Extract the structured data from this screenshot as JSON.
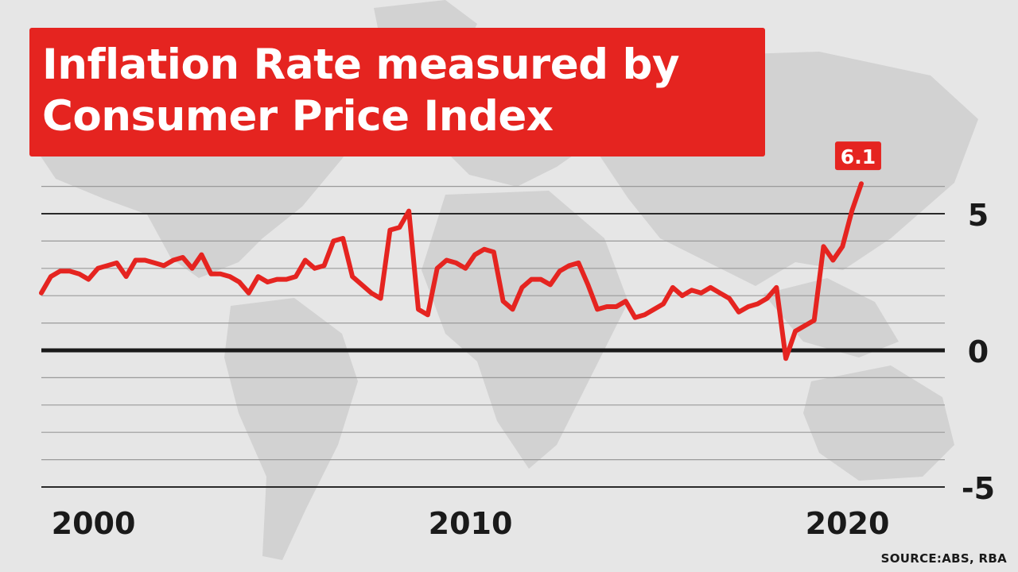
{
  "title": {
    "line1": "Inflation Rate measured by",
    "line2": "Consumer Price Index"
  },
  "source": "SOURCE:ABS, RBA",
  "colors": {
    "background": "#e6e6e6",
    "map": "#d2d2d2",
    "accent": "#e52420",
    "axis": "#1a1a1a"
  },
  "chart_data": {
    "type": "line",
    "title": "Inflation Rate measured by Consumer Price Index",
    "xlabel": "",
    "ylabel": "",
    "xlim": [
      1999.25,
      2022.5
    ],
    "ylim": [
      -5,
      6.3
    ],
    "x_ticks": [
      2000,
      2010,
      2020
    ],
    "y_ticks": [
      5,
      0,
      -5
    ],
    "grid": true,
    "last_label": "6.1",
    "series": [
      {
        "values": [
          [
            1999.25,
            2.1
          ],
          [
            1999.5,
            2.7
          ],
          [
            1999.75,
            2.9
          ],
          [
            2000.0,
            2.9
          ],
          [
            2000.25,
            2.8
          ],
          [
            2000.5,
            2.6
          ],
          [
            2000.75,
            3.0
          ],
          [
            2001.0,
            3.1
          ],
          [
            2001.25,
            3.2
          ],
          [
            2001.5,
            2.7
          ],
          [
            2001.75,
            3.3
          ],
          [
            2002.0,
            3.3
          ],
          [
            2002.25,
            3.2
          ],
          [
            2002.5,
            3.1
          ],
          [
            2002.75,
            3.3
          ],
          [
            2003.0,
            3.4
          ],
          [
            2003.25,
            3.0
          ],
          [
            2003.5,
            3.5
          ],
          [
            2003.75,
            2.8
          ],
          [
            2004.0,
            2.8
          ],
          [
            2004.25,
            2.7
          ],
          [
            2004.5,
            2.5
          ],
          [
            2004.75,
            2.1
          ],
          [
            2005.0,
            2.7
          ],
          [
            2005.25,
            2.5
          ],
          [
            2005.5,
            2.6
          ],
          [
            2005.75,
            2.6
          ],
          [
            2006.0,
            2.7
          ],
          [
            2006.25,
            3.3
          ],
          [
            2006.5,
            3.0
          ],
          [
            2006.75,
            3.1
          ],
          [
            2007.0,
            4.0
          ],
          [
            2007.25,
            4.1
          ],
          [
            2007.5,
            2.7
          ],
          [
            2007.75,
            2.4
          ],
          [
            2008.0,
            2.1
          ],
          [
            2008.25,
            1.9
          ],
          [
            2008.5,
            4.4
          ],
          [
            2008.75,
            4.5
          ],
          [
            2009.0,
            5.1
          ],
          [
            2009.25,
            1.5
          ],
          [
            2009.5,
            1.3
          ],
          [
            2009.75,
            3.0
          ],
          [
            2010.0,
            3.3
          ],
          [
            2010.25,
            3.2
          ],
          [
            2010.5,
            3.0
          ],
          [
            2010.75,
            3.5
          ],
          [
            2011.0,
            3.7
          ],
          [
            2011.25,
            3.6
          ],
          [
            2011.5,
            1.8
          ],
          [
            2011.75,
            1.5
          ],
          [
            2012.0,
            2.3
          ],
          [
            2012.25,
            2.6
          ],
          [
            2012.5,
            2.6
          ],
          [
            2012.75,
            2.4
          ],
          [
            2013.0,
            2.9
          ],
          [
            2013.25,
            3.1
          ],
          [
            2013.5,
            3.2
          ],
          [
            2013.75,
            2.4
          ],
          [
            2014.0,
            1.5
          ],
          [
            2014.25,
            1.6
          ],
          [
            2014.5,
            1.6
          ],
          [
            2014.75,
            1.8
          ],
          [
            2015.0,
            1.2
          ],
          [
            2015.25,
            1.3
          ],
          [
            2015.5,
            1.5
          ],
          [
            2015.75,
            1.7
          ],
          [
            2016.0,
            2.3
          ],
          [
            2016.25,
            2.0
          ],
          [
            2016.5,
            2.2
          ],
          [
            2016.75,
            2.1
          ],
          [
            2017.0,
            2.3
          ],
          [
            2017.25,
            2.1
          ],
          [
            2017.5,
            1.9
          ],
          [
            2017.75,
            1.4
          ],
          [
            2018.0,
            1.6
          ],
          [
            2018.25,
            1.7
          ],
          [
            2018.5,
            1.9
          ],
          [
            2018.75,
            2.3
          ],
          [
            2019.0,
            -0.3
          ],
          [
            2019.25,
            0.7
          ],
          [
            2019.5,
            0.9
          ],
          [
            2019.75,
            1.1
          ],
          [
            2020.0,
            3.8
          ],
          [
            2020.25,
            3.3
          ],
          [
            2020.5,
            3.8
          ],
          [
            2020.75,
            5.1
          ],
          [
            2021.0,
            6.1
          ]
        ]
      }
    ]
  }
}
